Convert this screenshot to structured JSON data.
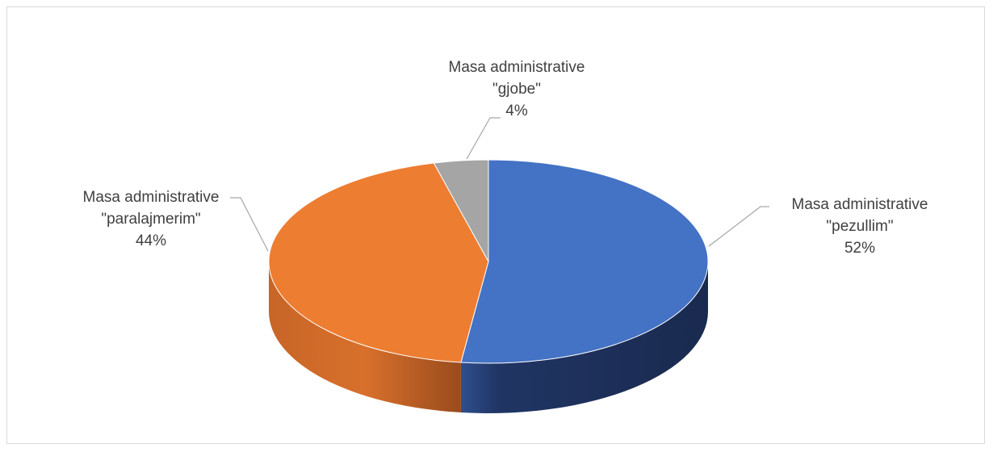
{
  "chart_data": {
    "type": "pie",
    "title": "",
    "style": "3d",
    "legend": "none",
    "slices": [
      {
        "label_lines": [
          "Masa administrative",
          "\"pezullim\""
        ],
        "percent_label": "52%",
        "value": 52,
        "color": "#4472c4"
      },
      {
        "label_lines": [
          "Masa administrative",
          "\"paralajmerim\""
        ],
        "percent_label": "44%",
        "value": 44,
        "color": "#ed7d31"
      },
      {
        "label_lines": [
          "Masa administrative",
          "\"gjobe\""
        ],
        "percent_label": "4%",
        "value": 4,
        "color": "#a5a5a5"
      }
    ]
  }
}
